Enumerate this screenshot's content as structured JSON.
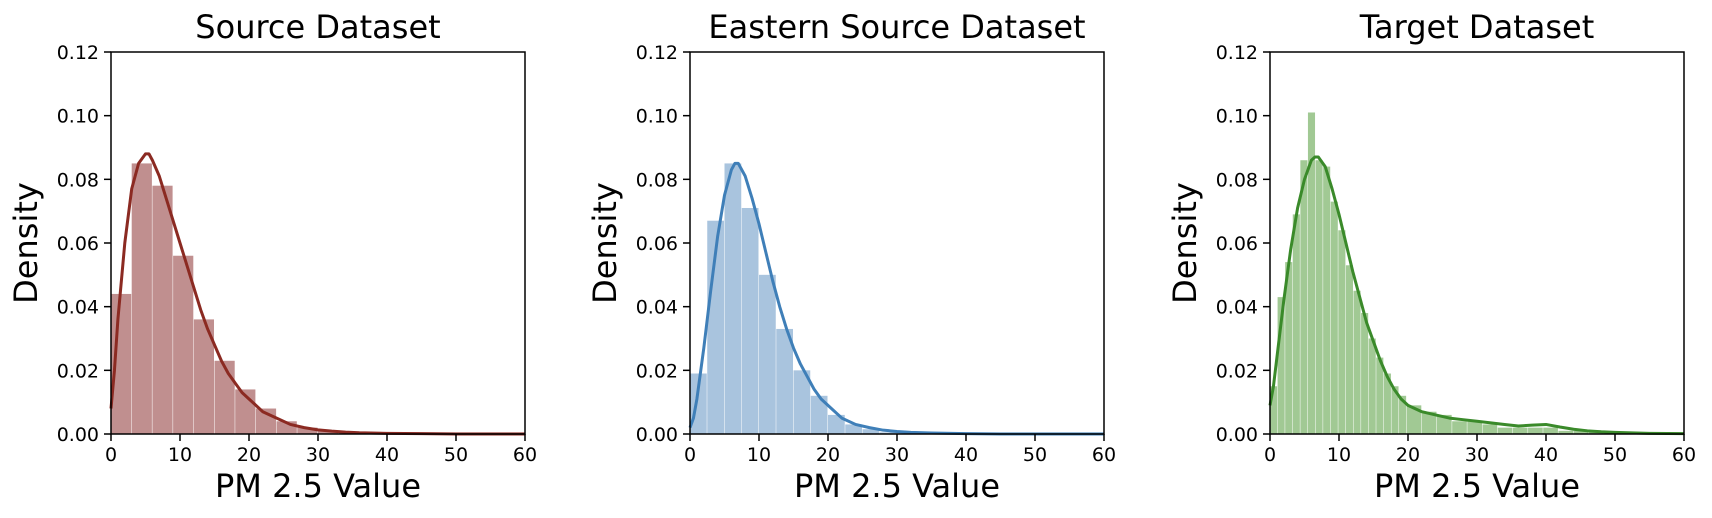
{
  "chart_data": [
    {
      "type": "histogram",
      "title": "Source Dataset",
      "xlabel": "PM 2.5 Value",
      "ylabel": "Density",
      "xlim": [
        0,
        60
      ],
      "ylim": [
        0,
        0.12
      ],
      "xticks": [
        "0",
        "10",
        "20",
        "30",
        "40",
        "50",
        "60"
      ],
      "yticks": [
        "0.00",
        "0.02",
        "0.04",
        "0.06",
        "0.08",
        "0.10",
        "0.12"
      ],
      "bar_color": "#c08f8f",
      "line_color": "#8b2a22",
      "bins": [
        {
          "x0": 0.0,
          "x1": 3.0,
          "y": 0.044
        },
        {
          "x0": 3.0,
          "x1": 6.0,
          "y": 0.085
        },
        {
          "x0": 6.0,
          "x1": 9.0,
          "y": 0.078
        },
        {
          "x0": 9.0,
          "x1": 12.0,
          "y": 0.056
        },
        {
          "x0": 12.0,
          "x1": 15.0,
          "y": 0.036
        },
        {
          "x0": 15.0,
          "x1": 18.0,
          "y": 0.023
        },
        {
          "x0": 18.0,
          "x1": 21.0,
          "y": 0.014
        },
        {
          "x0": 21.0,
          "x1": 24.0,
          "y": 0.008
        },
        {
          "x0": 24.0,
          "x1": 27.0,
          "y": 0.004
        },
        {
          "x0": 27.0,
          "x1": 30.0,
          "y": 0.002
        },
        {
          "x0": 30.0,
          "x1": 33.0,
          "y": 0.001
        },
        {
          "x0": 33.0,
          "x1": 60.0,
          "y": 0.0005
        }
      ],
      "kde": {
        "x": [
          0,
          0.5,
          1,
          2,
          3,
          4,
          5,
          5.5,
          6,
          7,
          8,
          9,
          10,
          11,
          12,
          13,
          14,
          15,
          16,
          17,
          18,
          19,
          20,
          22,
          24,
          26,
          28,
          30,
          32,
          34,
          36,
          40,
          45,
          50,
          55,
          60
        ],
        "y": [
          0.008,
          0.02,
          0.036,
          0.06,
          0.077,
          0.085,
          0.088,
          0.088,
          0.086,
          0.081,
          0.074,
          0.067,
          0.06,
          0.053,
          0.046,
          0.039,
          0.033,
          0.028,
          0.023,
          0.019,
          0.016,
          0.013,
          0.011,
          0.007,
          0.005,
          0.003,
          0.002,
          0.0013,
          0.0009,
          0.0006,
          0.0004,
          0.0002,
          0.0001,
          0.0,
          0.0,
          0.0
        ]
      }
    },
    {
      "type": "histogram",
      "title": "Eastern Source Dataset",
      "xlabel": "PM 2.5 Value",
      "ylabel": "Density",
      "xlim": [
        0,
        60
      ],
      "ylim": [
        0,
        0.12
      ],
      "xticks": [
        "0",
        "10",
        "20",
        "30",
        "40",
        "50",
        "60"
      ],
      "yticks": [
        "0.00",
        "0.02",
        "0.04",
        "0.06",
        "0.08",
        "0.10",
        "0.12"
      ],
      "bar_color": "#a9c4de",
      "line_color": "#3f7fb8",
      "bins": [
        {
          "x0": 0.0,
          "x1": 2.5,
          "y": 0.019
        },
        {
          "x0": 2.5,
          "x1": 5.0,
          "y": 0.067
        },
        {
          "x0": 5.0,
          "x1": 7.5,
          "y": 0.085
        },
        {
          "x0": 7.5,
          "x1": 10.0,
          "y": 0.071
        },
        {
          "x0": 10.0,
          "x1": 12.5,
          "y": 0.05
        },
        {
          "x0": 12.5,
          "x1": 15.0,
          "y": 0.033
        },
        {
          "x0": 15.0,
          "x1": 17.5,
          "y": 0.02
        },
        {
          "x0": 17.5,
          "x1": 20.0,
          "y": 0.012
        },
        {
          "x0": 20.0,
          "x1": 22.5,
          "y": 0.006
        },
        {
          "x0": 22.5,
          "x1": 25.0,
          "y": 0.003
        },
        {
          "x0": 25.0,
          "x1": 27.5,
          "y": 0.0015
        },
        {
          "x0": 27.5,
          "x1": 60.0,
          "y": 0.0005
        }
      ],
      "kde": {
        "x": [
          0,
          0.5,
          1,
          2,
          3,
          4,
          5,
          6,
          6.5,
          7,
          8,
          9,
          10,
          11,
          12,
          13,
          14,
          15,
          16,
          17,
          18,
          19,
          20,
          22,
          24,
          26,
          28,
          30,
          32,
          35,
          40,
          45,
          50,
          55,
          60
        ],
        "y": [
          0.002,
          0.005,
          0.011,
          0.027,
          0.045,
          0.062,
          0.075,
          0.083,
          0.085,
          0.085,
          0.081,
          0.074,
          0.066,
          0.057,
          0.048,
          0.04,
          0.033,
          0.027,
          0.022,
          0.018,
          0.014,
          0.011,
          0.009,
          0.005,
          0.003,
          0.002,
          0.0012,
          0.0008,
          0.0005,
          0.0003,
          0.0001,
          0.0,
          0.0,
          0.0,
          0.0
        ]
      }
    },
    {
      "type": "histogram",
      "title": "Target Dataset",
      "xlabel": "PM 2.5 Value",
      "ylabel": "Density",
      "xlim": [
        0,
        60
      ],
      "ylim": [
        0,
        0.12
      ],
      "xticks": [
        "0",
        "10",
        "20",
        "30",
        "40",
        "50",
        "60"
      ],
      "yticks": [
        "0.00",
        "0.02",
        "0.04",
        "0.06",
        "0.08",
        "0.10",
        "0.12"
      ],
      "bar_color": "#a1c994",
      "line_color": "#3a8a2a",
      "bins": [
        {
          "x0": 0.0,
          "x1": 1.1,
          "y": 0.015
        },
        {
          "x0": 1.1,
          "x1": 2.2,
          "y": 0.043
        },
        {
          "x0": 2.2,
          "x1": 3.3,
          "y": 0.054
        },
        {
          "x0": 3.3,
          "x1": 4.4,
          "y": 0.069
        },
        {
          "x0": 4.4,
          "x1": 5.5,
          "y": 0.086
        },
        {
          "x0": 5.5,
          "x1": 6.6,
          "y": 0.101
        },
        {
          "x0": 6.6,
          "x1": 7.7,
          "y": 0.086
        },
        {
          "x0": 7.7,
          "x1": 8.8,
          "y": 0.084
        },
        {
          "x0": 8.8,
          "x1": 9.9,
          "y": 0.073
        },
        {
          "x0": 9.9,
          "x1": 11.0,
          "y": 0.064
        },
        {
          "x0": 11.0,
          "x1": 12.1,
          "y": 0.053
        },
        {
          "x0": 12.1,
          "x1": 13.2,
          "y": 0.045
        },
        {
          "x0": 13.2,
          "x1": 14.3,
          "y": 0.038
        },
        {
          "x0": 14.3,
          "x1": 15.4,
          "y": 0.03
        },
        {
          "x0": 15.4,
          "x1": 16.5,
          "y": 0.024
        },
        {
          "x0": 16.5,
          "x1": 17.6,
          "y": 0.019
        },
        {
          "x0": 17.6,
          "x1": 18.7,
          "y": 0.015
        },
        {
          "x0": 18.7,
          "x1": 19.8,
          "y": 0.012
        },
        {
          "x0": 19.8,
          "x1": 22.0,
          "y": 0.009
        },
        {
          "x0": 22.0,
          "x1": 24.2,
          "y": 0.007
        },
        {
          "x0": 24.2,
          "x1": 26.4,
          "y": 0.006
        },
        {
          "x0": 26.4,
          "x1": 28.6,
          "y": 0.004
        },
        {
          "x0": 28.6,
          "x1": 30.8,
          "y": 0.004
        },
        {
          "x0": 30.8,
          "x1": 33.0,
          "y": 0.003
        },
        {
          "x0": 33.0,
          "x1": 35.2,
          "y": 0.002
        },
        {
          "x0": 35.2,
          "x1": 37.4,
          "y": 0.002
        },
        {
          "x0": 37.4,
          "x1": 39.6,
          "y": 0.002
        },
        {
          "x0": 39.6,
          "x1": 41.8,
          "y": 0.002
        },
        {
          "x0": 41.8,
          "x1": 44.0,
          "y": 0.001
        },
        {
          "x0": 44.0,
          "x1": 46.2,
          "y": 0.001
        },
        {
          "x0": 46.2,
          "x1": 48.4,
          "y": 0.0008
        },
        {
          "x0": 48.4,
          "x1": 60.0,
          "y": 0.0004
        }
      ],
      "kde": {
        "x": [
          0,
          0.5,
          1,
          2,
          3,
          4,
          5,
          6,
          6.5,
          7,
          8,
          9,
          10,
          11,
          12,
          13,
          14,
          15,
          16,
          17,
          18,
          19,
          20,
          22,
          24,
          26,
          28,
          30,
          32,
          34,
          36,
          38,
          40,
          42,
          44,
          46,
          48,
          50,
          55,
          60
        ],
        "y": [
          0.009,
          0.015,
          0.024,
          0.042,
          0.058,
          0.071,
          0.08,
          0.086,
          0.087,
          0.087,
          0.084,
          0.077,
          0.069,
          0.06,
          0.051,
          0.043,
          0.035,
          0.029,
          0.023,
          0.018,
          0.014,
          0.011,
          0.009,
          0.007,
          0.006,
          0.005,
          0.0045,
          0.004,
          0.0035,
          0.003,
          0.0025,
          0.0028,
          0.003,
          0.0022,
          0.0015,
          0.001,
          0.0007,
          0.0005,
          0.0002,
          0.0001
        ]
      }
    }
  ]
}
